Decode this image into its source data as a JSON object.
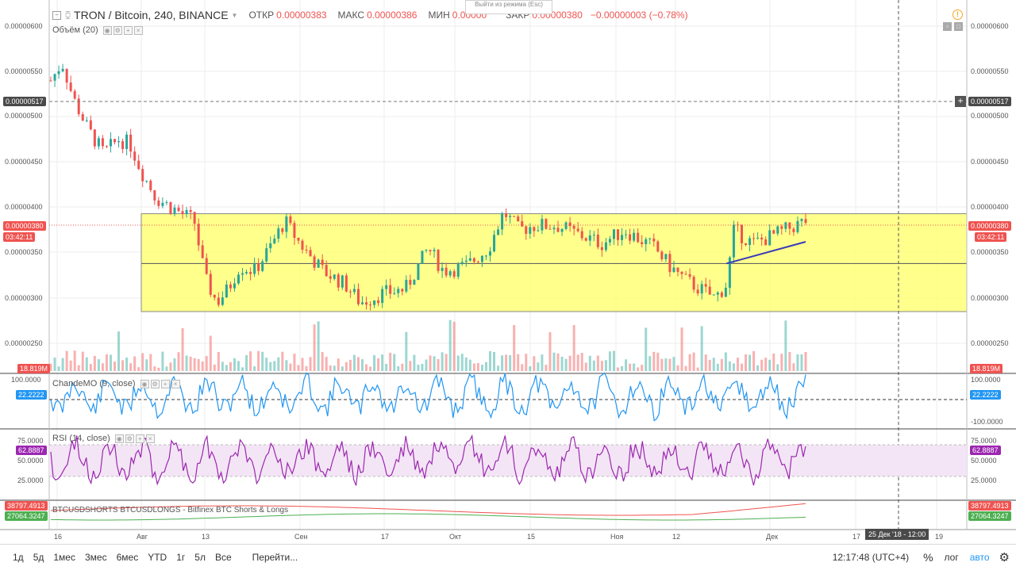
{
  "header": {
    "symbol": "TRON / Bitcoin, 240, BINANCE",
    "open_label": "ОТКР",
    "open": "0.00000383",
    "high_label": "МАКС",
    "high": "0.00000386",
    "low_label": "МИН",
    "low": "0.00000",
    "close_label": "ЗАКР",
    "close": "0.00000380",
    "change": "−0.00000003 (−0.78%)",
    "exit_mode_popup": "Выйти из режима (Esc)"
  },
  "studies": {
    "volume": "Объём (20)",
    "chande": "ChandeMO (9, close)",
    "rsi": "RSI (14, close)",
    "shorts_longs": "BTCUSDSHORTS BTCUSDLONGS - Bitfinex BTC Shorts & Longs"
  },
  "price_axis": {
    "labels": [
      "0.00000600",
      "0.00000550",
      "0.00000500",
      "0.00000450",
      "0.00000400",
      "0.00000350",
      "0.00000300",
      "0.00000250"
    ],
    "crosshair_price": "0.00000517",
    "last_price": "0.00000380",
    "countdown": "03:42:11",
    "volume_value": "18.819M"
  },
  "chande_axis": {
    "labels": [
      "100.0000",
      "-100.0000"
    ],
    "value": "22.2222"
  },
  "rsi_axis": {
    "labels": [
      "75.0000",
      "50.0000",
      "25.0000"
    ],
    "value": "62.8887"
  },
  "shorts_axis": {
    "shorts": "38797.4913",
    "longs": "27064.3247"
  },
  "time_axis": {
    "labels": [
      "16",
      "Авг",
      "13",
      "Сен",
      "17",
      "Окт",
      "15",
      "Ноя",
      "12",
      "Дек",
      "17",
      "19"
    ],
    "crosshair_time": "25 Дек '18 - 12:00"
  },
  "bottom_bar": {
    "ranges": [
      "1д",
      "5д",
      "1мес",
      "3мес",
      "6мес",
      "YTD",
      "1г",
      "5л",
      "Все"
    ],
    "goto": "Перейти...",
    "time": "12:17:48 (UTC+4)",
    "percent": "%",
    "log": "лог",
    "auto": "авто"
  },
  "colors": {
    "up": "#26a69a",
    "down": "#ef5350",
    "zone": "#ffff66",
    "chande": "#2196f3",
    "rsi": "#9c27b0",
    "rsi_band": "#f3e5f5",
    "shorts": "#ef5350",
    "longs": "#4caf50"
  },
  "icons": {
    "collapse": "collapse-icon",
    "warning": "warning-icon",
    "settings": "gear-icon"
  },
  "chart_data": {
    "type": "candlestick",
    "title": "TRON / Bitcoin, 240, BINANCE",
    "price_range": [
      2.3e-06,
      6.2e-06
    ],
    "price_path": [
      [
        0.0,
        5.4e-06
      ],
      [
        0.015,
        5.6e-06
      ],
      [
        0.03,
        5.2e-06
      ],
      [
        0.05,
        4.85e-06
      ],
      [
        0.07,
        4.6e-06
      ],
      [
        0.09,
        4.75e-06
      ],
      [
        0.105,
        4.7e-06
      ],
      [
        0.12,
        4.4e-06
      ],
      [
        0.14,
        4.1e-06
      ],
      [
        0.17,
        3.95e-06
      ],
      [
        0.19,
        3.85e-06
      ],
      [
        0.205,
        3.2e-06
      ],
      [
        0.22,
        2.95e-06
      ],
      [
        0.235,
        3.1e-06
      ],
      [
        0.25,
        3.35e-06
      ],
      [
        0.27,
        3.3e-06
      ],
      [
        0.29,
        3.55e-06
      ],
      [
        0.31,
        3.85e-06
      ],
      [
        0.33,
        3.6e-06
      ],
      [
        0.36,
        3.3e-06
      ],
      [
        0.39,
        3.15e-06
      ],
      [
        0.41,
        2.95e-06
      ],
      [
        0.44,
        3.05e-06
      ],
      [
        0.47,
        3.1e-06
      ],
      [
        0.5,
        3.55e-06
      ],
      [
        0.52,
        3.3e-06
      ],
      [
        0.55,
        3.35e-06
      ],
      [
        0.58,
        3.55e-06
      ],
      [
        0.6,
        3.95e-06
      ],
      [
        0.62,
        3.75e-06
      ],
      [
        0.64,
        3.8e-06
      ],
      [
        0.67,
        3.8e-06
      ],
      [
        0.7,
        3.7e-06
      ],
      [
        0.73,
        3.6e-06
      ],
      [
        0.76,
        3.75e-06
      ],
      [
        0.78,
        3.65e-06
      ],
      [
        0.8,
        3.55e-06
      ],
      [
        0.82,
        3.35e-06
      ],
      [
        0.84,
        3.2e-06
      ],
      [
        0.86,
        3.1e-06
      ],
      [
        0.88,
        3e-06
      ],
      [
        0.895,
        3.15e-06
      ],
      [
        0.905,
        3.75e-06
      ],
      [
        0.93,
        3.6e-06
      ],
      [
        0.96,
        3.7e-06
      ],
      [
        1.0,
        3.85e-06
      ]
    ],
    "zone": {
      "top": 3.93e-06,
      "mid": 3.38e-06,
      "bottom": 2.85e-06
    },
    "trendline": [
      [
        0.895,
        3.38e-06
      ],
      [
        1.0,
        3.62e-06
      ]
    ]
  }
}
